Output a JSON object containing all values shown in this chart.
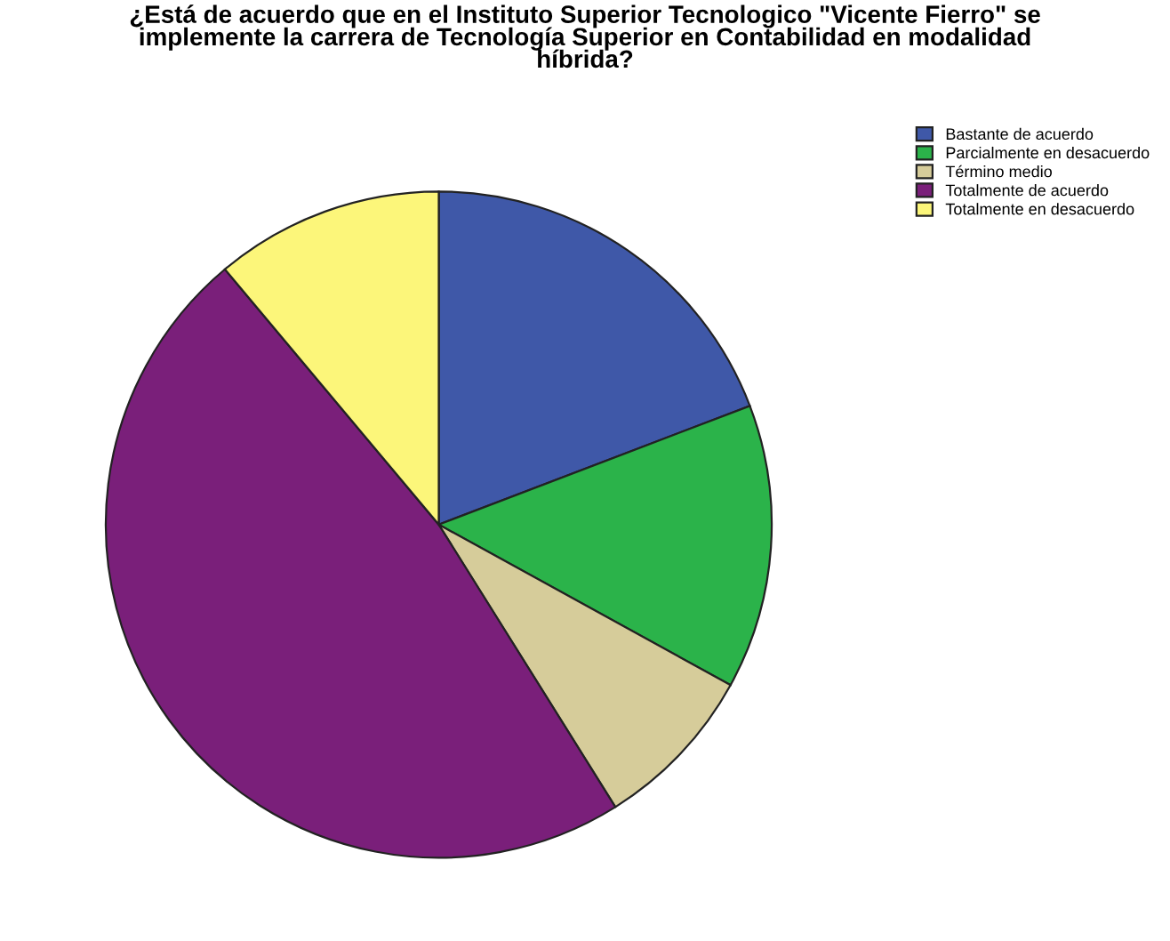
{
  "chart_data": {
    "type": "pie",
    "title": "¿Está de acuerdo que en el Instituto Superior Tecnologico \"Vicente Fierro\" se\nimplemente la carrera de Tecnología Superior en Contabilidad en modalidad\nhíbrida?",
    "categories": [
      "Bastante de acuerdo",
      "Parcialmente en desacuerdo",
      "Término medio",
      "Totalmente de acuerdo",
      "Totalmente en desacuerdo"
    ],
    "values": [
      19.2,
      13.8,
      8.1,
      47.8,
      11.1
    ],
    "colors": [
      "#3f58a8",
      "#2bb34a",
      "#d6cc9a",
      "#7a1f7a",
      "#fcf67a"
    ],
    "legend": "top right"
  }
}
